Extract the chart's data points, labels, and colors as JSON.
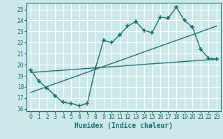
{
  "xlabel": "Humidex (Indice chaleur)",
  "bg_color": "#cce8e8",
  "grid_color": "#ffffff",
  "line_color": "#1a7070",
  "xlim": [
    -0.5,
    23.5
  ],
  "ylim": [
    15.8,
    25.6
  ],
  "yticks": [
    16,
    17,
    18,
    19,
    20,
    21,
    22,
    23,
    24,
    25
  ],
  "xticks": [
    0,
    1,
    2,
    3,
    4,
    5,
    6,
    7,
    8,
    9,
    10,
    11,
    12,
    13,
    14,
    15,
    16,
    17,
    18,
    19,
    20,
    21,
    22,
    23
  ],
  "curve1_x": [
    0,
    1,
    2,
    3,
    4,
    5,
    6,
    7,
    8,
    9,
    10,
    11,
    12,
    13,
    14,
    15,
    16,
    17,
    18,
    19,
    20,
    21,
    22,
    23
  ],
  "curve1_y": [
    19.5,
    18.5,
    17.9,
    17.2,
    16.6,
    16.5,
    16.3,
    16.5,
    19.7,
    22.2,
    22.0,
    22.7,
    23.5,
    23.9,
    23.1,
    22.9,
    24.3,
    24.2,
    25.2,
    24.0,
    23.4,
    21.4,
    20.6,
    20.5
  ],
  "line1_x": [
    0,
    23
  ],
  "line1_y": [
    19.3,
    20.5
  ],
  "line2_x": [
    0,
    23
  ],
  "line2_y": [
    17.5,
    23.5
  ],
  "xlabel_fontsize": 7,
  "tick_fontsize": 5.5,
  "linewidth": 1.0,
  "marker_size": 4,
  "marker_ew": 1.2
}
